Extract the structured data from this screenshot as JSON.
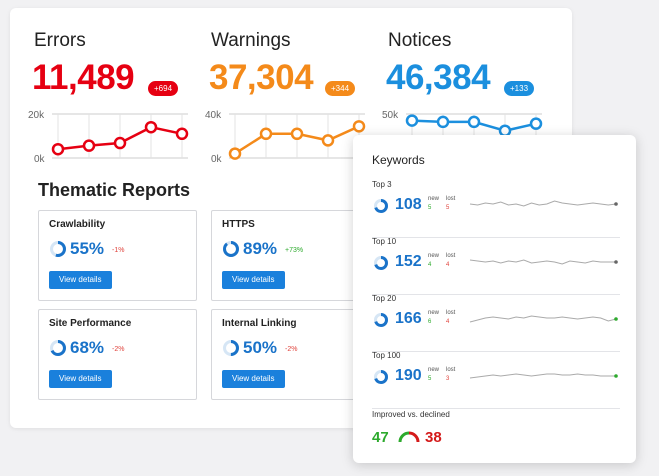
{
  "colors": {
    "errors": "#e60012",
    "warnings": "#f48a1a",
    "notices": "#1b8fde",
    "blue_text": "#1a73c9",
    "positive": "#2daa2d",
    "negative": "#e0433c",
    "button": "#1a80dc"
  },
  "metrics": [
    {
      "label": "Errors",
      "value": "11,489",
      "badge": "+694",
      "y_top": "20k",
      "y_bottom": "0k",
      "trend": [
        0.2,
        0.28,
        0.34,
        0.7,
        0.55
      ]
    },
    {
      "label": "Warnings",
      "value": "37,304",
      "badge": "+344",
      "y_top": "40k",
      "y_bottom": "0k",
      "trend": [
        0.1,
        0.55,
        0.55,
        0.4,
        0.72
      ]
    },
    {
      "label": "Notices",
      "value": "46,384",
      "badge": "+133",
      "y_top": "50k",
      "y_bottom": "",
      "trend": [
        0.85,
        0.82,
        0.82,
        0.62,
        0.78
      ]
    }
  ],
  "thematic": {
    "title": "Thematic Reports",
    "reports": [
      {
        "title": "Crawlability",
        "percent": "55%",
        "pct_value": 55,
        "delta": "-1%",
        "delta_sign": "negative",
        "button": "View details"
      },
      {
        "title": "HTTPS",
        "percent": "89%",
        "pct_value": 89,
        "delta": "+73%",
        "delta_sign": "positive",
        "button": "View details"
      },
      {
        "title": "Site Performance",
        "percent": "68%",
        "pct_value": 68,
        "delta": "-2%",
        "delta_sign": "negative",
        "button": "View details"
      },
      {
        "title": "Internal Linking",
        "percent": "50%",
        "pct_value": 50,
        "delta": "-2%",
        "delta_sign": "negative",
        "button": "View details"
      }
    ]
  },
  "keywords": {
    "title": "Keywords",
    "new_label": "new",
    "lost_label": "lost",
    "rows": [
      {
        "label": "Top 3",
        "value": "108",
        "new": "5",
        "lost": "5",
        "ring": 0.3,
        "end_color": "#666666"
      },
      {
        "label": "Top 10",
        "value": "152",
        "new": "4",
        "lost": "4",
        "ring": 0.3,
        "end_color": "#666666"
      },
      {
        "label": "Top 20",
        "value": "166",
        "new": "6",
        "lost": "4",
        "ring": 0.3,
        "end_color": "#2daa2d"
      },
      {
        "label": "Top 100",
        "value": "190",
        "new": "5",
        "lost": "3",
        "ring": 0.3,
        "end_color": "#2daa2d"
      }
    ],
    "improved_label": "Improved vs. declined",
    "improved": "47",
    "declined": "38"
  }
}
